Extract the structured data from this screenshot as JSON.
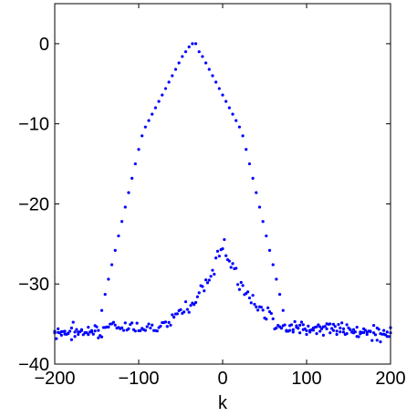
{
  "chart_data": {
    "type": "scatter",
    "title": "",
    "xlabel": "k",
    "ylabel": "",
    "xlim": [
      -200,
      200
    ],
    "ylim": [
      -40,
      5
    ],
    "xticks": [
      -200,
      -100,
      0,
      100,
      200
    ],
    "xtick_labels": [
      "−200",
      "−100",
      "0",
      "100",
      "200"
    ],
    "yticks": [
      -40,
      -30,
      -20,
      -10,
      0
    ],
    "ytick_labels": [
      "−40",
      "−30",
      "−20",
      "−10",
      "0"
    ],
    "grid": false,
    "legend": "none",
    "marker_color": "#0000ff",
    "series": [
      {
        "x": [
          -200,
          -196,
          -192,
          -188,
          -184,
          -180,
          -176,
          -172,
          -168,
          -164,
          -160,
          -156,
          -152,
          -148,
          -144,
          -140,
          -136,
          -132,
          -128,
          -124,
          -120,
          -116,
          -112,
          -108,
          -104,
          -100,
          -96,
          -92,
          -88,
          -84,
          -80,
          -76,
          -72,
          -68,
          -64,
          -60,
          -56,
          -52,
          -48,
          -44,
          -40,
          -36,
          -32,
          -28,
          -24,
          -20,
          -16,
          -12,
          -8,
          -4,
          0,
          4,
          8,
          12,
          16,
          20,
          24,
          28,
          32,
          36,
          40,
          44,
          48,
          52,
          56,
          60,
          64,
          68,
          72,
          76,
          80,
          84,
          88,
          92,
          96,
          100,
          104,
          108,
          112,
          116,
          120,
          124,
          128,
          132,
          136,
          140,
          144,
          148,
          152,
          156,
          160,
          164,
          168,
          172,
          176,
          180,
          184,
          188,
          192,
          196,
          200
        ],
        "y": [
          -36.1,
          -35.6,
          -36.4,
          -35.9,
          -36.2,
          -35.5,
          -36.0,
          -36.3,
          -35.7,
          -36.1,
          -35.4,
          -36.0,
          -35.2,
          -35.8,
          -33.3,
          -31.3,
          -29.4,
          -27.6,
          -25.8,
          -24.0,
          -22.2,
          -20.4,
          -18.6,
          -16.8,
          -15.0,
          -13.2,
          -11.5,
          -10.4,
          -9.6,
          -8.8,
          -8.0,
          -7.2,
          -6.4,
          -5.6,
          -4.8,
          -4.0,
          -3.2,
          -2.4,
          -1.6,
          -1.0,
          -0.4,
          0.0,
          0.0,
          -1.0,
          -1.6,
          -2.4,
          -3.2,
          -4.0,
          -4.8,
          -5.6,
          -6.4,
          -7.2,
          -8.0,
          -8.8,
          -9.6,
          -10.4,
          -11.5,
          -13.2,
          -15.0,
          -16.8,
          -18.6,
          -20.4,
          -22.2,
          -24.0,
          -25.8,
          -27.6,
          -29.4,
          -31.3,
          -33.3,
          -35.8,
          -35.2,
          -36.0,
          -35.4,
          -36.1,
          -35.7,
          -36.3,
          -36.0,
          -35.5,
          -36.2,
          -35.9,
          -36.4,
          -35.6,
          -36.1,
          -35.8,
          -36.3,
          -35.5,
          -36.0,
          -36.2,
          -35.7,
          -36.1,
          -35.4,
          -36.0,
          -35.6,
          -36.3,
          -35.9,
          -36.1,
          -35.5,
          -36.2,
          -35.8,
          -36.0,
          -36.1
        ]
      }
    ]
  }
}
